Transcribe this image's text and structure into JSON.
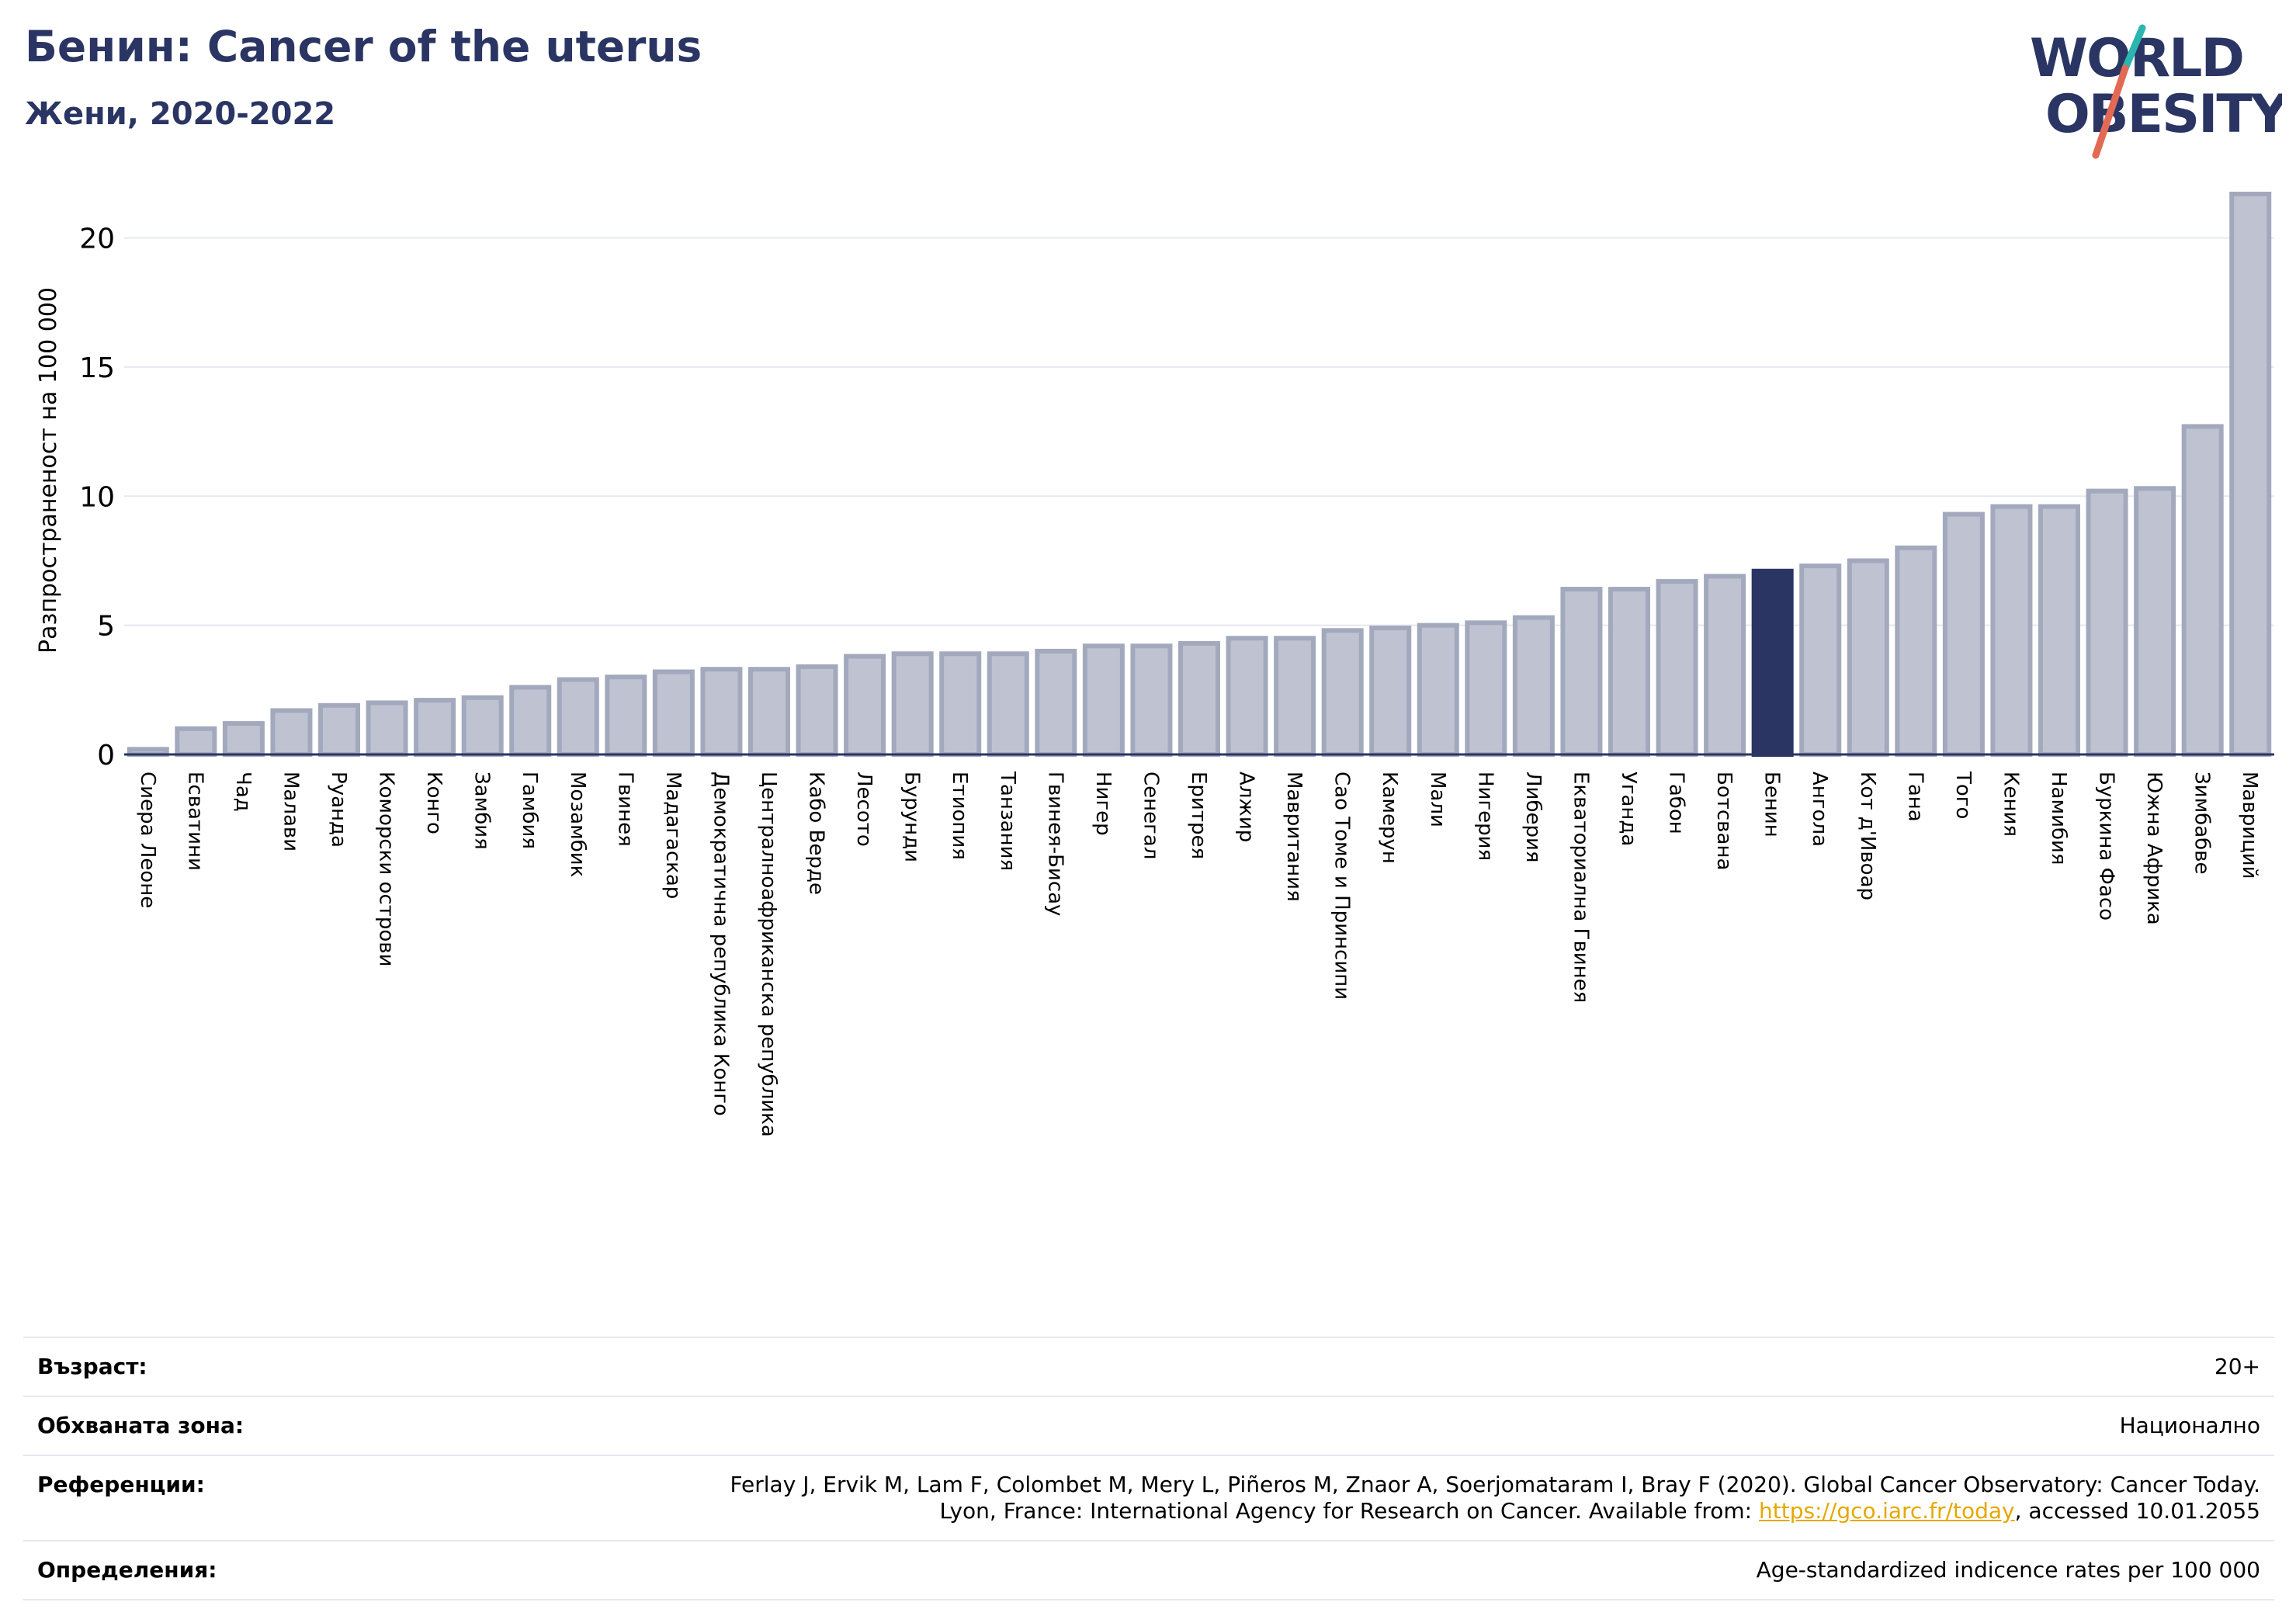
{
  "header": {
    "title": "Бенин: Cancer of the uterus",
    "subtitle": "Жени, 2020-2022"
  },
  "logo": {
    "line1": "WORLD",
    "line2": "OBESITY"
  },
  "colors": {
    "bar_default": "#bfc3d1",
    "bar_default_stroke": "#a3a9bd",
    "bar_highlight": "#2a3563",
    "title": "#2a3563",
    "logo_text": "#2a3563",
    "logo_slash_teal": "#2bb5b0",
    "logo_slash_red": "#e26a55",
    "link": "#e5a800"
  },
  "chart_data": {
    "type": "bar",
    "ylabel": "Разпространеност  на 100 000",
    "ylim": [
      0,
      22
    ],
    "yticks": [
      0,
      5,
      10,
      15,
      20
    ],
    "grid": true,
    "highlight": "Бенин",
    "categories": [
      "Сиера Леоне",
      "Есватини",
      "Чад",
      "Малави",
      "Руанда",
      "Коморски острови",
      "Конго",
      "Замбия",
      "Гамбия",
      "Мозамбик",
      "Гвинея",
      "Мадагаскар",
      "Демократична република Конго",
      "Централноафриканска република",
      "Кабо Верде",
      "Лесото",
      "Бурунди",
      "Етиопия",
      "Танзания",
      "Гвинея-Бисау",
      "Нигер",
      "Сенегал",
      "Еритрея",
      "Алжир",
      "Мавритания",
      "Сао Томе и Принсипи",
      "Камерун",
      "Мали",
      "Нигерия",
      "Либерия",
      "Екваториална Гвинея",
      "Уганда",
      "Габон",
      "Ботсвана",
      "Бенин",
      "Ангола",
      "Кот д'Ивоар",
      "Гана",
      "Того",
      "Кения",
      "Намибия",
      "Буркина Фасо",
      "Южна Африка",
      "Зимбабве",
      "Мавриций"
    ],
    "values": [
      0.2,
      1.0,
      1.2,
      1.7,
      1.9,
      2.0,
      2.1,
      2.2,
      2.6,
      2.9,
      3.0,
      3.2,
      3.3,
      3.3,
      3.4,
      3.8,
      3.9,
      3.9,
      3.9,
      4.0,
      4.2,
      4.2,
      4.3,
      4.5,
      4.5,
      4.8,
      4.9,
      5.0,
      5.1,
      5.3,
      6.4,
      6.4,
      6.7,
      6.9,
      7.1,
      7.3,
      7.5,
      8.0,
      9.3,
      9.6,
      9.6,
      10.2,
      10.3,
      12.7,
      21.7
    ]
  },
  "info": {
    "age_label": "Възраст:",
    "age_value": "20+",
    "area_label": "Обхваната зона:",
    "area_value": "Национално",
    "refs_label": "Референции:",
    "refs_line1": "Ferlay J, Ervik M, Lam F, Colombet M, Mery L, Piñeros M, Znaor A, Soerjomataram I, Bray F (2020). Global Cancer Observatory: Cancer Today.",
    "refs_line2_pre": "Lyon, France: International Agency for Research on Cancer. Available from: ",
    "refs_link": "https://gco.iarc.fr/today",
    "refs_line2_post": ", accessed 10.01.2055",
    "defs_label": "Определения:",
    "defs_value": "Age-standardized indicence rates per 100 000"
  }
}
